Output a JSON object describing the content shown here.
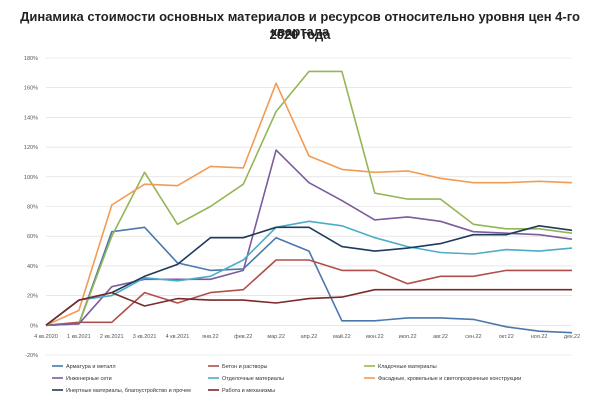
{
  "chart_data": {
    "type": "line",
    "title_line1": "Динамика стоимости основных материалов и ресурсов относительно уровня цен 4-го квартала",
    "title_line2": "2020 года",
    "xlabel": "",
    "ylabel": "",
    "ylim": [
      -20,
      180
    ],
    "y_ticks": [
      "-20%",
      "0%",
      "20%",
      "40%",
      "60%",
      "80%",
      "100%",
      "120%",
      "140%",
      "160%",
      "180%"
    ],
    "categories": [
      "4 кв.2020",
      "1 кв.2021",
      "2 кв.2021",
      "3 кв.2021",
      "4 кв.2021",
      "янв.22",
      "фев.22",
      "мар.22",
      "апр.22",
      "май.22",
      "июн.22",
      "июл.22",
      "авг.22",
      "сен.22",
      "окт.22",
      "ноя.22",
      "дек.22"
    ],
    "grid": "horizontal",
    "legend_position": "bottom",
    "series": [
      {
        "name": "Арматура и металл",
        "color": "#4a78ad",
        "values": [
          0,
          1,
          63,
          66,
          42,
          37,
          38,
          59,
          50,
          3,
          3,
          5,
          5,
          4,
          -1,
          -4,
          -5
        ]
      },
      {
        "name": "Бетон и растворы",
        "color": "#b04f4c",
        "values": [
          0,
          2,
          2,
          22,
          15,
          22,
          24,
          44,
          44,
          37,
          37,
          28,
          33,
          33,
          37,
          37,
          37
        ]
      },
      {
        "name": "Кладочные материалы",
        "color": "#95b556",
        "values": [
          0,
          1,
          60,
          103,
          68,
          80,
          95,
          144,
          171,
          171,
          89,
          85,
          85,
          68,
          65,
          65,
          62
        ]
      },
      {
        "name": "Инженерные сети",
        "color": "#7b5c9c",
        "values": [
          0,
          1,
          26,
          31,
          31,
          31,
          37,
          118,
          96,
          84,
          71,
          73,
          70,
          63,
          62,
          61,
          58
        ]
      },
      {
        "name": "Отделочные материалы",
        "color": "#4badc5",
        "values": [
          0,
          17,
          20,
          32,
          30,
          33,
          44,
          66,
          70,
          67,
          59,
          53,
          49,
          48,
          51,
          50,
          52
        ]
      },
      {
        "name": "Фасадные, кровельные и светопрозрачные конструкции",
        "color": "#f29b55",
        "values": [
          0,
          10,
          81,
          95,
          94,
          107,
          106,
          163,
          114,
          105,
          103,
          104,
          99,
          96,
          96,
          97,
          96
        ]
      },
      {
        "name": "Инертные материалы, благоустройство и прочее",
        "color": "#1f3b5c",
        "values": [
          0,
          17,
          22,
          33,
          41,
          59,
          59,
          66,
          66,
          53,
          50,
          52,
          55,
          61,
          61,
          67,
          64
        ]
      },
      {
        "name": "Работа и механизмы",
        "color": "#7a2a2a",
        "values": [
          0,
          17,
          22,
          13,
          18,
          17,
          17,
          15,
          18,
          19,
          24,
          24,
          24,
          24,
          24,
          24,
          24
        ]
      }
    ]
  }
}
